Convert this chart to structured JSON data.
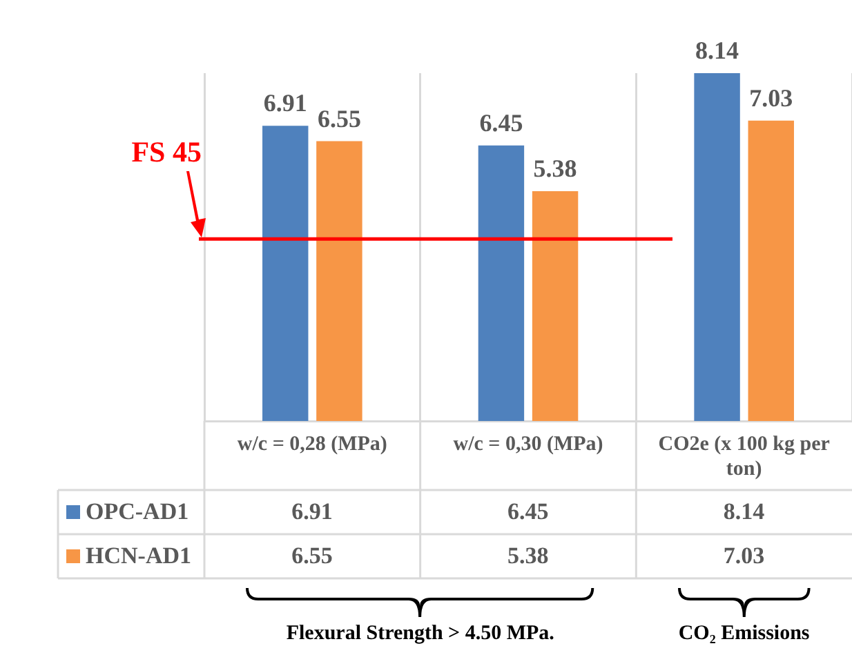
{
  "chart_data": {
    "type": "bar",
    "categories": [
      "w/c = 0,28 (MPa)",
      "w/c = 0,30 (MPa)",
      "CO2e (x 100 kg per ton)"
    ],
    "series": [
      {
        "name": "OPC-AD1",
        "color": "#4f81bd",
        "values": [
          6.91,
          6.45,
          8.14
        ]
      },
      {
        "name": "HCN-AD1",
        "color": "#f79646",
        "values": [
          6.55,
          5.38,
          7.03
        ]
      }
    ],
    "data_labels": true,
    "grid": "x",
    "legend": "bottom left",
    "ref_lines": [
      {
        "axis": "y",
        "value": 4.26,
        "label": "FS 45",
        "color": "#ff0000"
      }
    ],
    "annotations": [
      "Flexural Strength > 4.50 MPa.",
      "CO₂ Emissions",
      {
        "text": "6.91",
        "x": "w/c = 0,28 (MPa)",
        "y": 6.91
      },
      {
        "text": "6.55",
        "x": "w/c = 0,28 (MPa)",
        "y": 6.55
      },
      {
        "text": "6.45",
        "x": "w/c = 0,30 (MPa)",
        "y": 6.45
      },
      {
        "text": "5.38",
        "x": "w/c = 0,30 (MPa)",
        "y": 5.38
      },
      {
        "text": "8.14",
        "x": "CO2e (x 100 kg per ton)",
        "y": 8.14
      },
      {
        "text": "7.03",
        "x": "CO2e (x 100 kg per ton)",
        "y": 7.03
      }
    ]
  }
}
